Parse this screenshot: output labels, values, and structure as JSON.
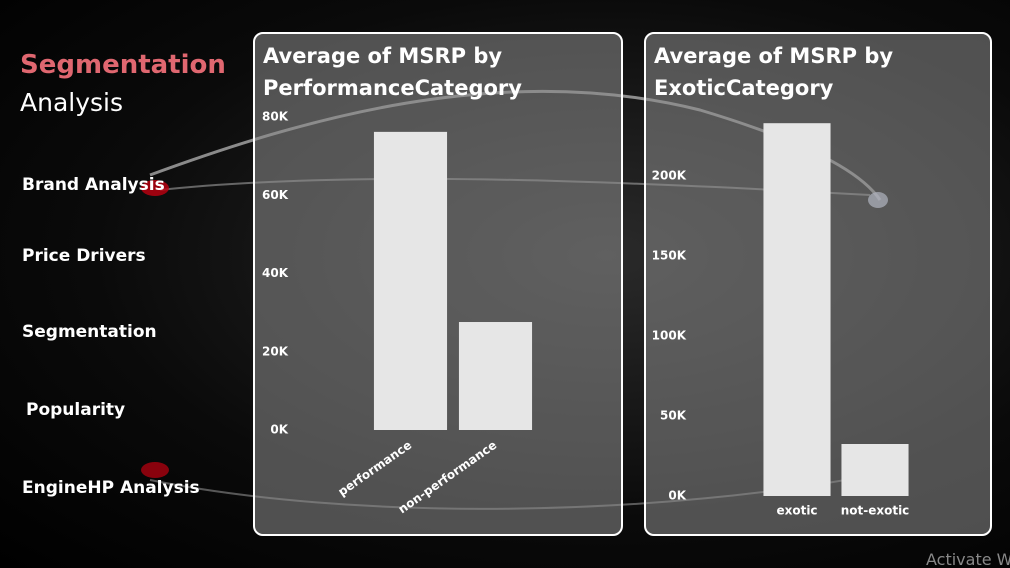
{
  "header": {
    "title": "Segmentation",
    "subtitle": "Analysis"
  },
  "nav": [
    "Brand Analysis",
    "Price Drivers",
    "Segmentation",
    "Popularity",
    "EngineHP Analysis"
  ],
  "watermark": "Activate W",
  "chart_data": [
    {
      "type": "bar",
      "title": "Average of MSRP by PerformanceCategory",
      "categories": [
        "performance",
        "non-performance"
      ],
      "values": [
        76200,
        27600
      ],
      "color": "#e6e6e6",
      "ylim": [
        0,
        80000
      ],
      "yticks": [
        {
          "value": 0,
          "label": "0K"
        },
        {
          "value": 20000,
          "label": "20K"
        },
        {
          "value": 40000,
          "label": "40K"
        },
        {
          "value": 60000,
          "label": "60K"
        },
        {
          "value": 80000,
          "label": "80K"
        }
      ]
    },
    {
      "type": "bar",
      "title": "Average of MSRP by ExoticCategory",
      "categories": [
        "exotic",
        "not-exotic"
      ],
      "values": [
        233000,
        32500
      ],
      "color": "#e6e6e6",
      "ylim": [
        0,
        250000
      ],
      "yticks": [
        {
          "value": 0,
          "label": "0K"
        },
        {
          "value": 50000,
          "label": "50K"
        },
        {
          "value": 100000,
          "label": "100K"
        },
        {
          "value": 150000,
          "label": "150K"
        },
        {
          "value": 200000,
          "label": "200K"
        }
      ]
    }
  ]
}
